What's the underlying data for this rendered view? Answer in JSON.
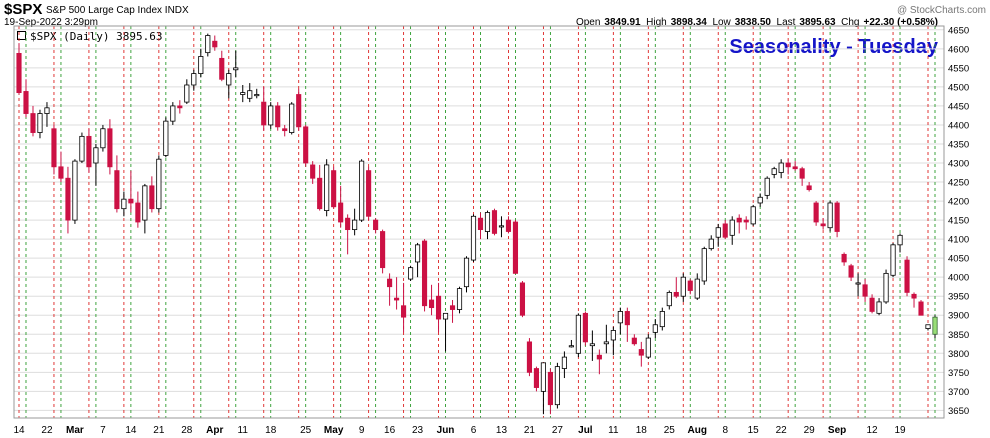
{
  "header": {
    "symbol": "$SPX",
    "description": "S&P 500 Large Cap Index INDX",
    "date": "19-Sep-2022 3:29pm",
    "series_label": "$SPX (Daily) 3895.63",
    "open_label": "Open",
    "open_value": "3849.91",
    "high_label": "High",
    "high_value": "3898.34",
    "low_label": "Low",
    "low_value": "3838.50",
    "last_label": "Last",
    "last_value": "3895.63",
    "chg_label": "Chg",
    "chg_value": "+22.30 (+0.58%)",
    "credit": "@ StockCharts.com",
    "annotation": "Seasonality - Tuesday"
  },
  "colors": {
    "up": "#ffffff",
    "down": "#cc1144",
    "up_stroke": "#000000",
    "tuesday_line": "#2a9a2a",
    "other_line": "#dd2222",
    "grid": "#dddddd",
    "annotation": "#1414c8",
    "last_bar": "#99dd77"
  },
  "chart_data": {
    "type": "candlestick",
    "ylim": [
      3630,
      4660
    ],
    "y_ticks": [
      3650,
      3700,
      3750,
      3800,
      3850,
      3900,
      3950,
      4000,
      4050,
      4100,
      4150,
      4200,
      4250,
      4300,
      4350,
      4400,
      4450,
      4500,
      4550,
      4600,
      4650
    ],
    "x_tick_labels": [
      "14",
      "22",
      "Mar",
      "7",
      "14",
      "21",
      "28",
      "Apr",
      "11",
      "18",
      "25",
      "May",
      "9",
      "16",
      "23",
      "Jun",
      "6",
      "13",
      "21",
      "27",
      "Jul",
      "11",
      "18",
      "25",
      "Aug",
      "8",
      "15",
      "22",
      "29",
      "Sep",
      "12",
      "19"
    ],
    "tuesday_lines": "green dashed lines mark Tuesdays",
    "other_weekday_lines": "red dashed lines mark Mondays",
    "candles": [
      [
        4588,
        4615,
        4480,
        4485
      ],
      [
        4488,
        4520,
        4420,
        4430
      ],
      [
        4430,
        4450,
        4370,
        4380
      ],
      [
        4380,
        4440,
        4365,
        4430
      ],
      [
        4430,
        4460,
        4395,
        4445
      ],
      [
        4390,
        4400,
        4270,
        4290
      ],
      [
        4290,
        4330,
        4250,
        4260
      ],
      [
        4260,
        4290,
        4115,
        4150
      ],
      [
        4150,
        4310,
        4140,
        4305
      ],
      [
        4305,
        4380,
        4300,
        4370
      ],
      [
        4370,
        4390,
        4275,
        4290
      ],
      [
        4300,
        4350,
        4240,
        4340
      ],
      [
        4340,
        4400,
        4330,
        4390
      ],
      [
        4390,
        4415,
        4270,
        4290
      ],
      [
        4280,
        4320,
        4170,
        4180
      ],
      [
        4180,
        4225,
        4160,
        4205
      ],
      [
        4205,
        4280,
        4170,
        4195
      ],
      [
        4195,
        4225,
        4130,
        4145
      ],
      [
        4150,
        4245,
        4115,
        4240
      ],
      [
        4240,
        4265,
        4170,
        4180
      ],
      [
        4180,
        4320,
        4170,
        4310
      ],
      [
        4320,
        4420,
        4315,
        4410
      ],
      [
        4410,
        4460,
        4400,
        4450
      ],
      [
        4450,
        4465,
        4430,
        4445
      ],
      [
        4460,
        4520,
        4455,
        4505
      ],
      [
        4505,
        4545,
        4490,
        4535
      ],
      [
        4535,
        4600,
        4525,
        4580
      ],
      [
        4590,
        4640,
        4580,
        4635
      ],
      [
        4620,
        4635,
        4595,
        4605
      ],
      [
        4575,
        4595,
        4515,
        4520
      ],
      [
        4505,
        4545,
        4470,
        4535
      ],
      [
        4545,
        4595,
        4525,
        4550
      ],
      [
        4480,
        4505,
        4460,
        4485
      ],
      [
        4470,
        4510,
        4460,
        4490
      ],
      [
        4480,
        4495,
        4470,
        4480
      ],
      [
        4460,
        4500,
        4385,
        4400
      ],
      [
        4400,
        4460,
        4390,
        4450
      ],
      [
        4450,
        4460,
        4385,
        4395
      ],
      [
        4390,
        4400,
        4370,
        4385
      ],
      [
        4380,
        4460,
        4375,
        4455
      ],
      [
        4480,
        4495,
        4385,
        4395
      ],
      [
        4395,
        4400,
        4290,
        4300
      ],
      [
        4295,
        4305,
        4245,
        4260
      ],
      [
        4260,
        4295,
        4175,
        4180
      ],
      [
        4175,
        4310,
        4160,
        4295
      ],
      [
        4280,
        4290,
        4180,
        4185
      ],
      [
        4195,
        4240,
        4130,
        4145
      ],
      [
        4155,
        4165,
        4060,
        4125
      ],
      [
        4125,
        4180,
        4110,
        4150
      ],
      [
        4150,
        4310,
        4145,
        4305
      ],
      [
        4280,
        4290,
        4150,
        4160
      ],
      [
        4150,
        4155,
        4115,
        4125
      ],
      [
        4120,
        4125,
        4010,
        4025
      ],
      [
        3995,
        4010,
        3925,
        3975
      ],
      [
        3945,
        4000,
        3915,
        3940
      ],
      [
        3925,
        3985,
        3855,
        3895
      ],
      [
        3995,
        4030,
        3990,
        4025
      ],
      [
        4040,
        4090,
        4000,
        4085
      ],
      [
        4095,
        4100,
        3910,
        3925
      ],
      [
        3940,
        3980,
        3900,
        3920
      ],
      [
        3950,
        3985,
        3855,
        3890
      ],
      [
        3890,
        3905,
        3805,
        3905
      ],
      [
        3925,
        3940,
        3880,
        3915
      ],
      [
        3915,
        3975,
        3905,
        3970
      ],
      [
        3975,
        4055,
        3960,
        4050
      ],
      [
        4045,
        4165,
        4040,
        4160
      ],
      [
        4155,
        4170,
        4100,
        4125
      ],
      [
        4120,
        4175,
        4100,
        4170
      ],
      [
        4175,
        4180,
        4110,
        4115
      ],
      [
        4135,
        4160,
        4105,
        4135
      ],
      [
        4150,
        4160,
        4115,
        4120
      ],
      [
        4145,
        4150,
        4010,
        4010
      ],
      [
        3985,
        3990,
        3895,
        3900
      ],
      [
        3830,
        3840,
        3740,
        3750
      ],
      [
        3760,
        3765,
        3700,
        3710
      ],
      [
        3700,
        3775,
        3640,
        3775
      ],
      [
        3750,
        3760,
        3640,
        3665
      ],
      [
        3665,
        3775,
        3655,
        3765
      ],
      [
        3760,
        3805,
        3735,
        3790
      ],
      [
        3820,
        3835,
        3815,
        3820
      ],
      [
        3800,
        3905,
        3790,
        3900
      ],
      [
        3905,
        3910,
        3820,
        3830
      ],
      [
        3820,
        3860,
        3780,
        3825
      ],
      [
        3795,
        3810,
        3745,
        3785
      ],
      [
        3825,
        3875,
        3800,
        3830
      ],
      [
        3835,
        3870,
        3795,
        3860
      ],
      [
        3880,
        3920,
        3850,
        3910
      ],
      [
        3910,
        3920,
        3830,
        3875
      ],
      [
        3840,
        3850,
        3820,
        3825
      ],
      [
        3810,
        3830,
        3765,
        3795
      ],
      [
        3790,
        3850,
        3785,
        3840
      ],
      [
        3855,
        3890,
        3840,
        3875
      ],
      [
        3870,
        3920,
        3860,
        3910
      ],
      [
        3925,
        3965,
        3915,
        3960
      ],
      [
        3960,
        4000,
        3945,
        3950
      ],
      [
        3950,
        4010,
        3935,
        4000
      ],
      [
        3990,
        3995,
        3955,
        3965
      ],
      [
        3945,
        4010,
        3940,
        3995
      ],
      [
        3990,
        4080,
        3980,
        4075
      ],
      [
        4075,
        4110,
        4070,
        4100
      ],
      [
        4105,
        4140,
        4080,
        4130
      ],
      [
        4140,
        4150,
        4100,
        4105
      ],
      [
        4110,
        4160,
        4085,
        4150
      ],
      [
        4155,
        4165,
        4115,
        4145
      ],
      [
        4150,
        4160,
        4125,
        4145
      ],
      [
        4140,
        4190,
        4135,
        4185
      ],
      [
        4195,
        4220,
        4185,
        4210
      ],
      [
        4215,
        4265,
        4205,
        4260
      ],
      [
        4270,
        4290,
        4260,
        4285
      ],
      [
        4275,
        4310,
        4260,
        4300
      ],
      [
        4300,
        4310,
        4270,
        4290
      ],
      [
        4290,
        4305,
        4280,
        4285
      ],
      [
        4285,
        4290,
        4240,
        4260
      ],
      [
        4240,
        4250,
        4225,
        4230
      ],
      [
        4195,
        4200,
        4135,
        4145
      ],
      [
        4140,
        4155,
        4125,
        4135
      ],
      [
        4130,
        4200,
        4120,
        4195
      ],
      [
        4195,
        4200,
        4105,
        4120
      ],
      [
        4060,
        4065,
        4030,
        4040
      ],
      [
        4030,
        4035,
        3990,
        4000
      ],
      [
        3985,
        4010,
        3950,
        3985
      ],
      [
        3980,
        3995,
        3935,
        3950
      ],
      [
        3945,
        3955,
        3905,
        3910
      ],
      [
        3905,
        3945,
        3900,
        3935
      ],
      [
        3935,
        4020,
        3930,
        4010
      ],
      [
        4005,
        4090,
        4000,
        4085
      ],
      [
        4085,
        4115,
        4065,
        4110
      ],
      [
        4045,
        4055,
        3950,
        3960
      ],
      [
        3955,
        3960,
        3920,
        3945
      ],
      [
        3935,
        3940,
        3900,
        3900
      ],
      [
        3865,
        3875,
        3860,
        3875
      ],
      [
        3850,
        3900,
        3840,
        3895
      ]
    ]
  }
}
